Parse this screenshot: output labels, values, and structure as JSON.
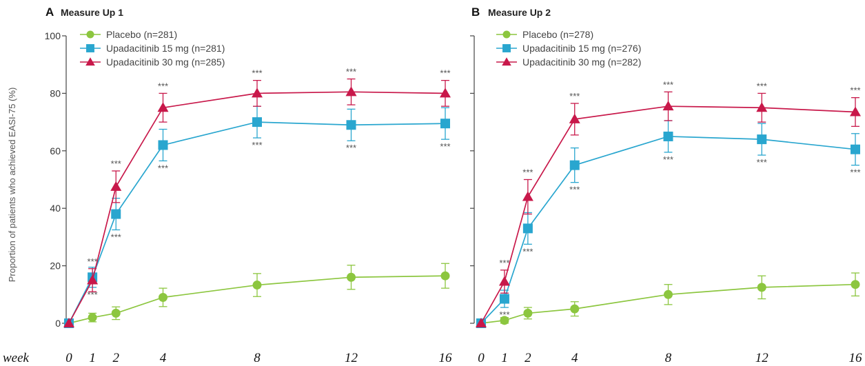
{
  "ylabel": "Proportion of patients who achieved EASI-75 (%)",
  "week_label": "week",
  "week_ticks": [
    "0",
    "1",
    "2",
    "4",
    "8",
    "12",
    "16"
  ],
  "colors": {
    "placebo": "#8cc63f",
    "upa15": "#29a6cf",
    "upa30": "#c8184a"
  },
  "chart_data": [
    {
      "type": "line",
      "panel": "A",
      "title": "Measure Up 1",
      "x": [
        0,
        1,
        2,
        4,
        8,
        12,
        16
      ],
      "ylim": [
        0,
        100
      ],
      "yticks": [
        0,
        20,
        40,
        60,
        80,
        100
      ],
      "legend": "top-left",
      "significance_mark": "***",
      "series": [
        {
          "name": "Placebo (n=281)",
          "key": "placebo",
          "marker": "circle",
          "values": [
            0,
            2,
            3.5,
            9,
            13.3,
            16,
            16.5
          ],
          "errors": [
            0,
            1.5,
            2.2,
            3.2,
            4,
            4.2,
            4.3
          ]
        },
        {
          "name": "Upadacitinib 15 mg (n=281)",
          "key": "upa15",
          "marker": "square",
          "values": [
            0,
            16,
            38,
            62,
            70,
            69,
            69.5
          ],
          "errors": [
            0,
            3.5,
            5.5,
            5.5,
            5.5,
            5.5,
            5.5
          ]
        },
        {
          "name": "Upadacitinib 30 mg (n=285)",
          "key": "upa30",
          "marker": "triangle",
          "values": [
            0,
            15,
            47.5,
            75,
            80,
            80.5,
            80
          ],
          "errors": [
            0,
            4,
            5.5,
            5,
            4.5,
            4.5,
            4.5
          ]
        }
      ],
      "sig_above": [
        1,
        2,
        4,
        8,
        12,
        16
      ],
      "sig_below": [
        1,
        2,
        4,
        8,
        12,
        16
      ]
    },
    {
      "type": "line",
      "panel": "B",
      "title": "Measure Up 2",
      "x": [
        0,
        1,
        2,
        4,
        8,
        12,
        16
      ],
      "ylim": [
        0,
        100
      ],
      "yticks": [
        0,
        20,
        40,
        60,
        80,
        100
      ],
      "legend": "top-left",
      "significance_mark": "***",
      "series": [
        {
          "name": "Placebo (n=278)",
          "key": "placebo",
          "marker": "circle",
          "values": [
            0,
            1,
            3.5,
            5,
            10,
            12.5,
            13.5
          ],
          "errors": [
            0,
            1,
            2,
            2.5,
            3.5,
            4,
            4
          ]
        },
        {
          "name": "Upadacitinib 15 mg (n=276)",
          "key": "upa15",
          "marker": "square",
          "values": [
            0,
            8.5,
            33,
            55,
            65,
            64,
            60.5
          ],
          "errors": [
            0,
            3,
            5.5,
            6,
            5.5,
            5.5,
            5.5
          ]
        },
        {
          "name": "Upadacitinib 30 mg (n=282)",
          "key": "upa30",
          "marker": "triangle",
          "values": [
            0,
            14.5,
            44,
            71,
            75.5,
            75,
            73.5
          ],
          "errors": [
            0,
            4,
            6,
            5.5,
            5,
            5,
            5
          ]
        }
      ],
      "sig_above": [
        1,
        2,
        4,
        8,
        12,
        16
      ],
      "sig_below": [
        1,
        2,
        4,
        8,
        12,
        16
      ]
    }
  ]
}
